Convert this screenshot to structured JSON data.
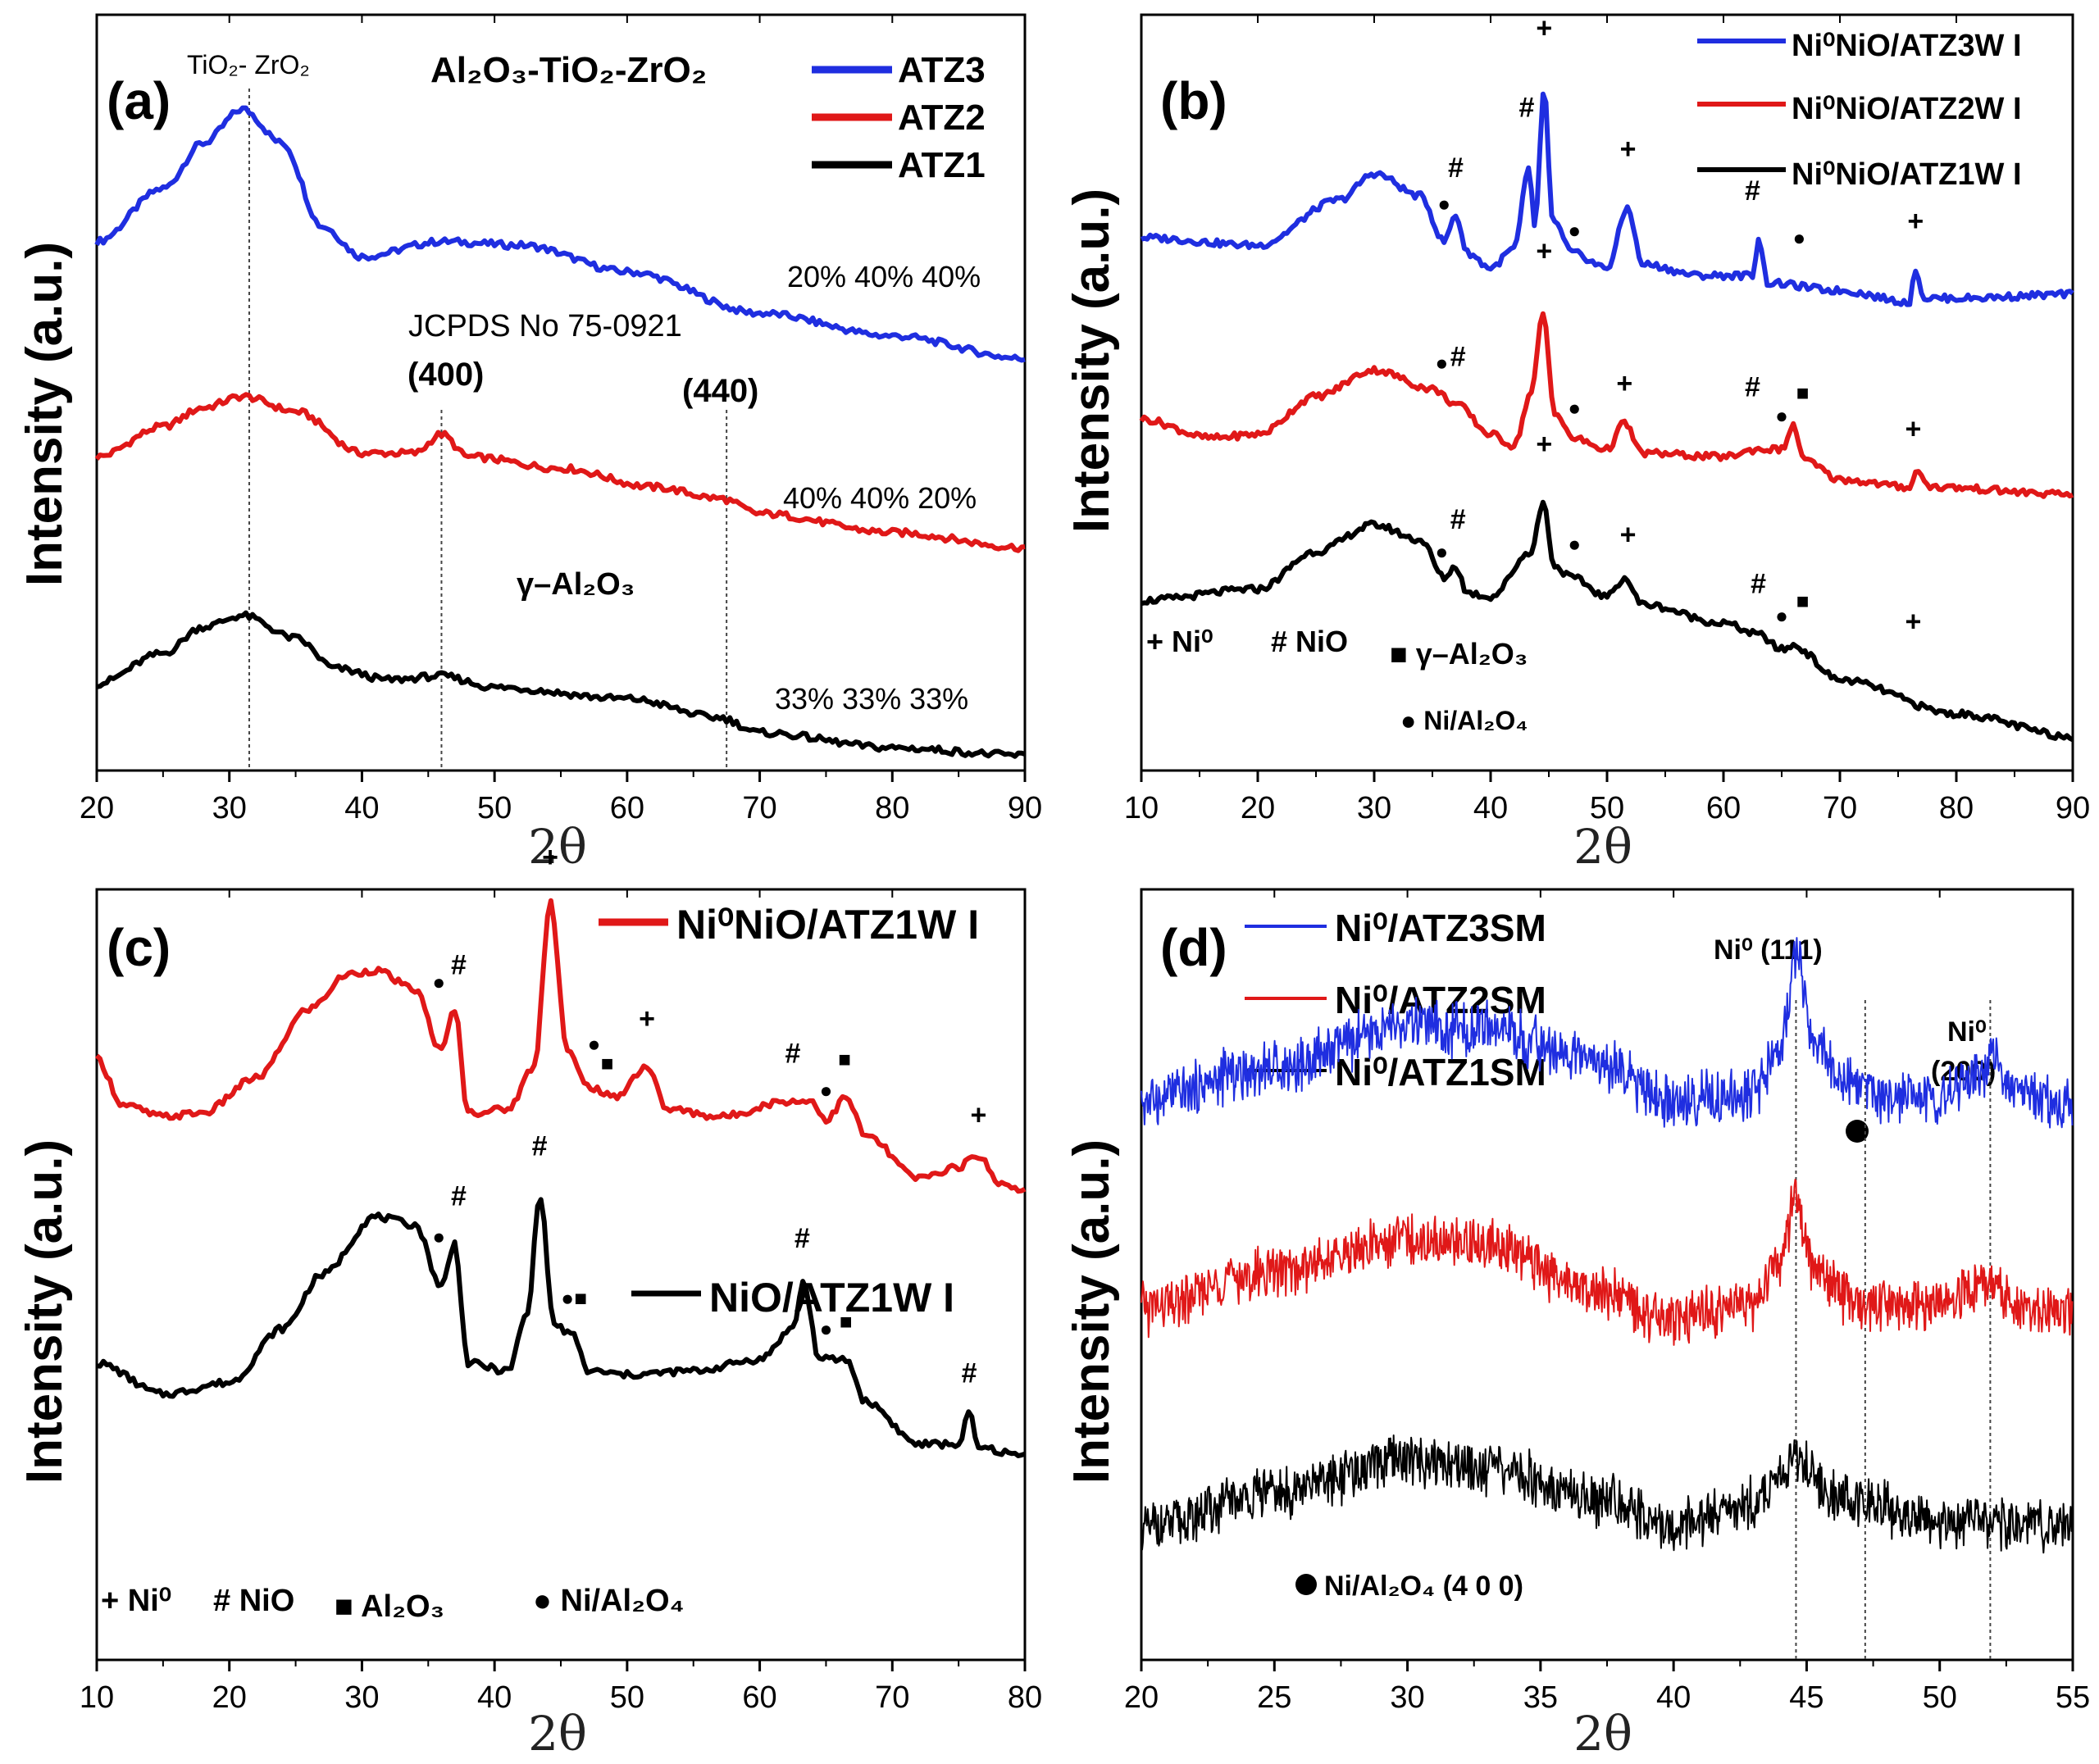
{
  "figure": {
    "panels": 4
  },
  "chart_data": [
    {
      "type": "line",
      "panel_label": "(a)",
      "title": "",
      "xlabel": "2θ",
      "ylabel": "Intensity (a.u.)",
      "xlim": [
        20,
        90
      ],
      "ylim": [
        0,
        10
      ],
      "xticks": [
        "20",
        "30",
        "40",
        "50",
        "60",
        "70",
        "80",
        "90"
      ],
      "legend": {
        "position": "top-right"
      },
      "series": [
        {
          "name": "ATZ3",
          "color": "#1f2ee0",
          "points": [
            [
              20,
              7.0
            ],
            [
              25,
              7.7
            ],
            [
              28,
              8.3
            ],
            [
              31,
              8.75
            ],
            [
              34,
              8.3
            ],
            [
              37,
              7.2
            ],
            [
              40,
              6.8
            ],
            [
              46,
              7.0
            ],
            [
              52,
              6.95
            ],
            [
              60,
              6.6
            ],
            [
              70,
              6.05
            ],
            [
              80,
              5.75
            ],
            [
              90,
              5.45
            ]
          ]
        },
        {
          "name": "ATZ2",
          "color": "#e01818",
          "points": [
            [
              20,
              4.15
            ],
            [
              25,
              4.55
            ],
            [
              28,
              4.8
            ],
            [
              31,
              4.95
            ],
            [
              35,
              4.75
            ],
            [
              40,
              4.2
            ],
            [
              44,
              4.2
            ],
            [
              46,
              4.45
            ],
            [
              48,
              4.15
            ],
            [
              55,
              4.0
            ],
            [
              62,
              3.75
            ],
            [
              67,
              3.6
            ],
            [
              70,
              3.4
            ],
            [
              80,
              3.15
            ],
            [
              90,
              2.95
            ]
          ]
        },
        {
          "name": "ATZ1",
          "color": "#000000",
          "points": [
            [
              20,
              1.15
            ],
            [
              25,
              1.55
            ],
            [
              28,
              1.9
            ],
            [
              31,
              2.05
            ],
            [
              35,
              1.75
            ],
            [
              38,
              1.35
            ],
            [
              42,
              1.2
            ],
            [
              46,
              1.25
            ],
            [
              50,
              1.1
            ],
            [
              60,
              0.95
            ],
            [
              67,
              0.7
            ],
            [
              70,
              0.5
            ],
            [
              80,
              0.3
            ],
            [
              90,
              0.2
            ]
          ]
        }
      ],
      "vlines": [
        31.5,
        46.0,
        67.5
      ],
      "composition_labels": [
        "20%  40% 40%",
        "40%  40% 20%",
        "33%  33% 33%"
      ],
      "annotations": {
        "phase_a": "TiO₂- ZrO₂",
        "system": "Al₂O₃-TiO₂-ZrO₂",
        "jcpds": "JCPDS No 75-0921",
        "hkl1": "(400)",
        "hkl2": "(440)",
        "gamma": "γ–Al₂O₃"
      }
    },
    {
      "type": "line",
      "panel_label": "(b)",
      "xlabel": "2θ",
      "ylabel": "Intensity (a.u.)",
      "xlim": [
        10,
        90
      ],
      "ylim": [
        0,
        10
      ],
      "xticks": [
        "10",
        "20",
        "30",
        "40",
        "50",
        "60",
        "70",
        "80",
        "90"
      ],
      "legend": {
        "position": "top-right"
      },
      "series": [
        {
          "name": "Ni⁰NiO/ATZ3W I",
          "color": "#1f2ee0",
          "points": [
            [
              10,
              7.05
            ],
            [
              20,
              6.95
            ],
            [
              27,
              7.55
            ],
            [
              30,
              7.9
            ],
            [
              34,
              7.6
            ],
            [
              36,
              7.0
            ],
            [
              37,
              7.35
            ],
            [
              38,
              6.85
            ],
            [
              40,
              6.65
            ],
            [
              42,
              6.9
            ],
            [
              43.3,
              7.95
            ],
            [
              43.8,
              7.2
            ],
            [
              44.6,
              9.0
            ],
            [
              45.3,
              7.3
            ],
            [
              47,
              6.85
            ],
            [
              50,
              6.65
            ],
            [
              51.8,
              7.45
            ],
            [
              53,
              6.7
            ],
            [
              58,
              6.55
            ],
            [
              62.5,
              6.55
            ],
            [
              63,
              7.05
            ],
            [
              63.8,
              6.45
            ],
            [
              70,
              6.35
            ],
            [
              76,
              6.2
            ],
            [
              76.5,
              6.65
            ],
            [
              77.2,
              6.25
            ],
            [
              80,
              6.25
            ],
            [
              90,
              6.3
            ]
          ]
        },
        {
          "name": "Ni⁰NiO/ATZ2W I",
          "color": "#e01818",
          "points": [
            [
              10,
              4.65
            ],
            [
              16,
              4.4
            ],
            [
              20,
              4.45
            ],
            [
              25,
              4.95
            ],
            [
              30,
              5.3
            ],
            [
              35,
              5.05
            ],
            [
              37,
              4.85
            ],
            [
              40,
              4.45
            ],
            [
              42,
              4.3
            ],
            [
              43.5,
              5.0
            ],
            [
              44.5,
              6.05
            ],
            [
              45.5,
              4.75
            ],
            [
              47,
              4.4
            ],
            [
              50,
              4.25
            ],
            [
              51.5,
              4.6
            ],
            [
              53,
              4.2
            ],
            [
              60,
              4.15
            ],
            [
              63,
              4.25
            ],
            [
              65,
              4.25
            ],
            [
              66,
              4.55
            ],
            [
              67,
              4.1
            ],
            [
              70,
              3.85
            ],
            [
              76,
              3.75
            ],
            [
              76.5,
              3.95
            ],
            [
              78,
              3.75
            ],
            [
              90,
              3.65
            ]
          ]
        },
        {
          "name": "Ni⁰NiO/ATZ1W I",
          "color": "#000000",
          "points": [
            [
              10,
              2.25
            ],
            [
              20,
              2.4
            ],
            [
              25,
              2.9
            ],
            [
              30,
              3.25
            ],
            [
              34,
              3.05
            ],
            [
              36,
              2.55
            ],
            [
              37,
              2.7
            ],
            [
              38,
              2.35
            ],
            [
              40,
              2.3
            ],
            [
              43.5,
              2.9
            ],
            [
              44.5,
              3.55
            ],
            [
              45.5,
              2.7
            ],
            [
              47,
              2.55
            ],
            [
              50,
              2.3
            ],
            [
              51.5,
              2.55
            ],
            [
              53,
              2.2
            ],
            [
              60,
              1.95
            ],
            [
              63,
              1.8
            ],
            [
              65,
              1.6
            ],
            [
              66,
              1.65
            ],
            [
              70,
              1.2
            ],
            [
              80,
              0.75
            ],
            [
              90,
              0.45
            ]
          ]
        }
      ],
      "markers": {
        "plus": "+",
        "hash": "#"
      },
      "legend_symbols": {
        "ni0": "+ Ni⁰",
        "nio": "# NiO",
        "gamma": "■ γ–Al₂O₃",
        "spinel": "● Ni/Al₂O₄"
      }
    },
    {
      "type": "line",
      "panel_label": "(c)",
      "xlabel": "2θ",
      "ylabel": "Intensity (a.u.)",
      "xlim": [
        10,
        80
      ],
      "ylim": [
        0,
        10
      ],
      "xticks": [
        "10",
        "20",
        "30",
        "40",
        "50",
        "60",
        "70",
        "80"
      ],
      "series": [
        {
          "name": "Ni⁰NiO/ATZ1W I",
          "color": "#e01818",
          "points": [
            [
              10,
              7.8
            ],
            [
              12,
              7.2
            ],
            [
              15,
              7.05
            ],
            [
              18,
              7.1
            ],
            [
              22,
              7.55
            ],
            [
              26,
              8.45
            ],
            [
              29,
              8.9
            ],
            [
              31,
              8.95
            ],
            [
              34,
              8.7
            ],
            [
              36,
              7.9
            ],
            [
              37,
              8.45
            ],
            [
              38,
              7.1
            ],
            [
              41,
              7.15
            ],
            [
              43,
              7.7
            ],
            [
              44.2,
              9.85
            ],
            [
              45.5,
              7.9
            ],
            [
              47,
              7.45
            ],
            [
              49,
              7.3
            ],
            [
              51.5,
              7.7
            ],
            [
              53,
              7.15
            ],
            [
              57,
              7.05
            ],
            [
              62,
              7.25
            ],
            [
              64,
              7.25
            ],
            [
              65,
              7.0
            ],
            [
              66.5,
              7.3
            ],
            [
              68,
              6.8
            ],
            [
              72,
              6.25
            ],
            [
              75,
              6.4
            ],
            [
              76.5,
              6.55
            ],
            [
              78,
              6.2
            ],
            [
              80,
              6.1
            ]
          ]
        },
        {
          "name": "NiO/ATZ1W I",
          "color": "#000000",
          "points": [
            [
              10,
              3.85
            ],
            [
              15,
              3.45
            ],
            [
              20,
              3.6
            ],
            [
              24,
              4.3
            ],
            [
              27,
              5.0
            ],
            [
              31,
              5.75
            ],
            [
              34,
              5.65
            ],
            [
              36,
              4.85
            ],
            [
              37,
              5.4
            ],
            [
              38,
              3.85
            ],
            [
              41,
              3.75
            ],
            [
              42.5,
              4.5
            ],
            [
              43.4,
              6.05
            ],
            [
              44.5,
              4.35
            ],
            [
              46,
              4.2
            ],
            [
              47,
              3.75
            ],
            [
              50,
              3.7
            ],
            [
              55,
              3.75
            ],
            [
              60,
              3.9
            ],
            [
              62.5,
              4.3
            ],
            [
              63.3,
              4.9
            ],
            [
              64.5,
              3.9
            ],
            [
              66.5,
              3.9
            ],
            [
              68,
              3.35
            ],
            [
              72,
              2.8
            ],
            [
              75,
              2.8
            ],
            [
              75.8,
              3.2
            ],
            [
              76.5,
              2.75
            ],
            [
              80,
              2.65
            ]
          ]
        }
      ],
      "legend_symbols": {
        "ni0": "+ Ni⁰",
        "nio": "# NiO",
        "al2o3": "■ Al₂O₃",
        "spinel": "● Ni/Al₂O₄"
      }
    },
    {
      "type": "line",
      "panel_label": "(d)",
      "xlabel": "2θ",
      "ylabel": "Intensity (a.u.)",
      "xlim": [
        20,
        55
      ],
      "ylim": [
        0,
        10
      ],
      "xticks": [
        "20",
        "25",
        "30",
        "35",
        "40",
        "45",
        "50",
        "55"
      ],
      "legend": {
        "position": "top-left"
      },
      "series": [
        {
          "name": "Ni⁰/ATZ3SM",
          "color": "#1f2ee0",
          "points": [
            [
              20,
              7.25
            ],
            [
              25,
              7.7
            ],
            [
              30,
              8.2
            ],
            [
              33,
              8.2
            ],
            [
              37,
              7.75
            ],
            [
              40,
              7.25
            ],
            [
              43,
              7.35
            ],
            [
              44,
              7.9
            ],
            [
              44.6,
              9.15
            ],
            [
              45.3,
              8.0
            ],
            [
              46.5,
              7.45
            ],
            [
              48,
              7.3
            ],
            [
              50,
              7.3
            ],
            [
              51.5,
              7.55
            ],
            [
              52,
              7.9
            ],
            [
              52.6,
              7.35
            ],
            [
              55,
              7.2
            ]
          ]
        },
        {
          "name": "Ni⁰/ATZ2SM",
          "color": "#e01818",
          "points": [
            [
              20,
              4.55
            ],
            [
              25,
              5.05
            ],
            [
              30,
              5.45
            ],
            [
              33,
              5.4
            ],
            [
              37,
              4.8
            ],
            [
              40,
              4.4
            ],
            [
              43,
              4.6
            ],
            [
              44,
              5.15
            ],
            [
              44.6,
              5.95
            ],
            [
              45.3,
              5.0
            ],
            [
              47,
              4.6
            ],
            [
              50,
              4.6
            ],
            [
              52,
              4.85
            ],
            [
              53,
              4.55
            ],
            [
              55,
              4.55
            ]
          ]
        },
        {
          "name": "Ni⁰/ATZ1SM",
          "color": "#000000",
          "points": [
            [
              20,
              1.7
            ],
            [
              25,
              2.15
            ],
            [
              30,
              2.6
            ],
            [
              33,
              2.5
            ],
            [
              37,
              2.1
            ],
            [
              40,
              1.75
            ],
            [
              43,
              2.0
            ],
            [
              44.6,
              2.6
            ],
            [
              46,
              2.1
            ],
            [
              50,
              1.8
            ],
            [
              55,
              1.75
            ]
          ]
        }
      ],
      "vlines": [
        44.6,
        47.2,
        51.9
      ],
      "annotations": {
        "ni111": "Ni⁰ (111)",
        "ni200_a": "Ni⁰",
        "ni200_b": "(200)",
        "spinel": "Ni/Al₂O₄ (4 0 0)"
      }
    }
  ]
}
